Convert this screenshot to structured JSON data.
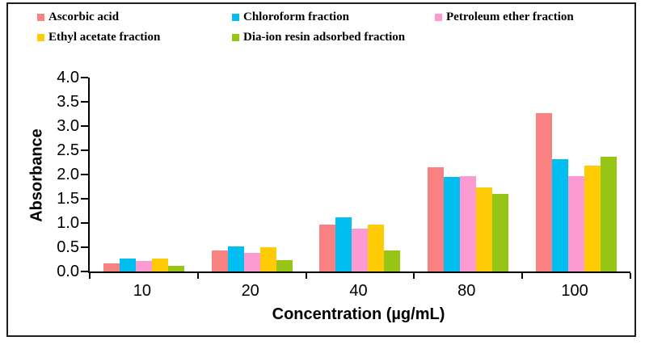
{
  "chart_data": {
    "type": "bar",
    "title": "",
    "xlabel": "Concentration (µg/mL)",
    "ylabel": "Absorbance",
    "ylim": [
      0,
      4.0
    ],
    "ytick_step": 0.5,
    "grid": false,
    "legend_position": "top",
    "categories": [
      "10",
      "20",
      "40",
      "80",
      "100"
    ],
    "series": [
      {
        "name": "Ascorbic acid",
        "color": "#F98182",
        "values": [
          0.17,
          0.44,
          0.97,
          2.15,
          3.27
        ]
      },
      {
        "name": "Chloroform fraction",
        "color": "#00BFF0",
        "values": [
          0.27,
          0.52,
          1.11,
          1.95,
          2.32
        ]
      },
      {
        "name": "Petroleum ether fraction",
        "color": "#FB9BD2",
        "values": [
          0.21,
          0.38,
          0.88,
          1.96,
          1.96
        ]
      },
      {
        "name": "Ethyl acetate fraction",
        "color": "#FFCB05",
        "values": [
          0.27,
          0.5,
          0.96,
          1.73,
          2.19
        ]
      },
      {
        "name": "Dia-ion resin adsorbed fraction",
        "color": "#97C515",
        "values": [
          0.12,
          0.23,
          0.44,
          1.6,
          2.36
        ]
      }
    ],
    "axis_color": "#000000",
    "frame_border_color": "#1c1c1c"
  }
}
